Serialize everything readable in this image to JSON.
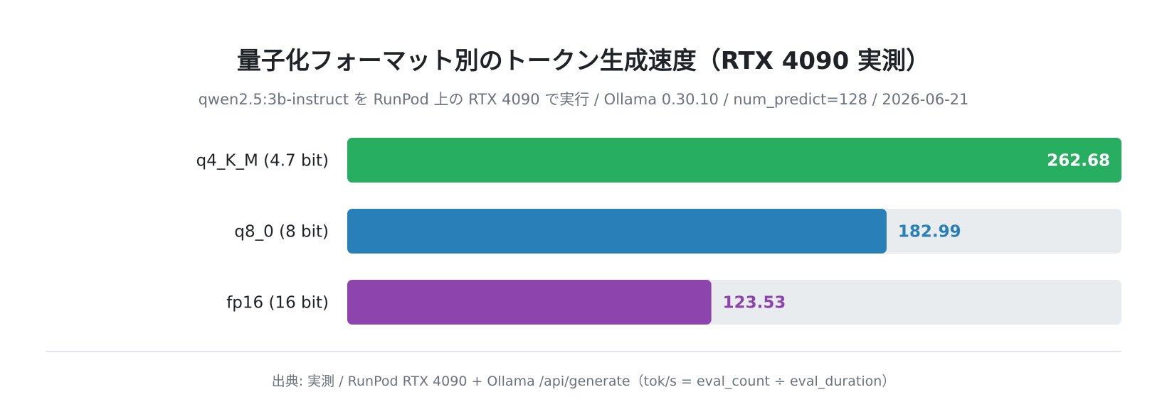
{
  "chart_data": {
    "type": "bar",
    "orientation": "horizontal",
    "title": "量子化フォーマット別のトークン生成速度（RTX 4090 実測）",
    "subtitle": "qwen2.5:3b-instruct を RunPod 上の RTX 4090 で実行 / Ollama 0.30.10 / num_predict=128 / 2026-06-21",
    "categories": [
      "q4_K_M (4.7 bit)",
      "q8_0 (8 bit)",
      "fp16 (16 bit)"
    ],
    "values": [
      262.68,
      182.99,
      123.53
    ],
    "value_labels": [
      "262.68",
      "182.99",
      "123.53"
    ],
    "colors": [
      "#27ae60",
      "#2980b9",
      "#8e44ad"
    ],
    "track_color": "#e8ecef",
    "xlim": [
      0,
      262.68
    ],
    "grid": false,
    "source": "出典: 実測 / RunPod RTX 4090 + Ollama /api/generate（tok/s = eval_count ÷ eval_duration）"
  }
}
